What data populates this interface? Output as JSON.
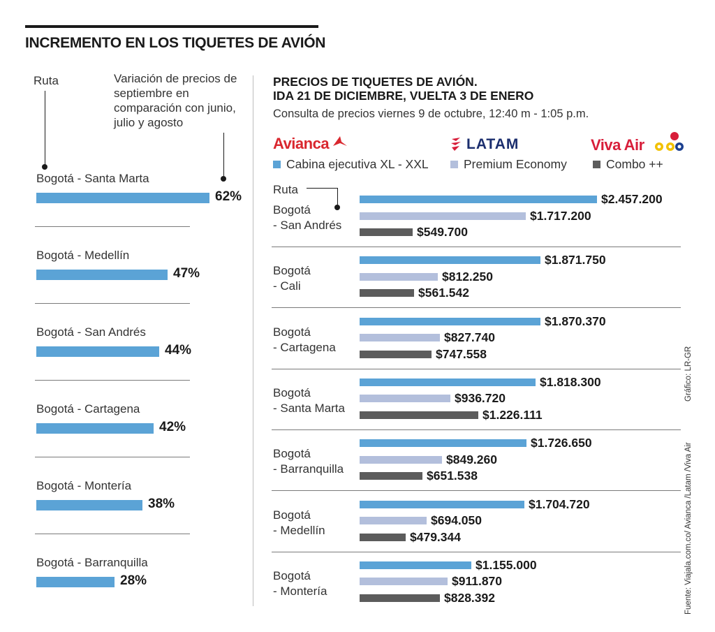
{
  "title": "INCREMENTO EN LOS TIQUETES DE AVIÓN",
  "left": {
    "ruta_label": "Ruta",
    "variation_label": "Variación de precios de septiembre en comparación con junio, julio y agosto"
  },
  "right": {
    "title_line1": "PRECIOS DE TIQUETES DE AVIÓN.",
    "title_line2": "IDA 21 DE DICIEMBRE, VUELTA 3 DE ENERO",
    "subtitle": "Consulta de precios viernes 9 de octubre, 12:40 m - 1:05 p.m.",
    "ruta_label": "Ruta",
    "airlines": {
      "avianca": "Avianca",
      "latam": "LATAM",
      "viva": "Viva Air"
    }
  },
  "credits": {
    "grafico": "Gráfico: LR-GR",
    "fuente": "Fuente: Viajala.com.co/ Avianca /Latam /Viva Air"
  },
  "colors": {
    "blue": "#5ba3d6",
    "light": "#b3bfdc",
    "dark": "#5c5c5c",
    "avianca": "#d9272e",
    "latam": "#1b2e6e",
    "viva": "#d81e3a"
  },
  "chart_data": [
    {
      "type": "bar",
      "orientation": "horizontal",
      "categories": [
        "Bogotá - Santa Marta",
        "Bogotá - Medellín",
        "Bogotá -  San Andrés",
        "Bogotá - Cartagena",
        "Bogotá - Montería",
        "Bogotá - Barranquilla"
      ],
      "values": [
        62,
        47,
        44,
        42,
        38,
        28
      ],
      "value_labels": [
        "62%",
        "47%",
        "44%",
        "42%",
        "38%",
        "28%"
      ],
      "unit": "%"
    },
    {
      "type": "bar",
      "orientation": "horizontal",
      "grouped": true,
      "categories": [
        "Bogotá\n- San Andrés",
        "Bogotá\n- Cali",
        "Bogotá\n- Cartagena",
        "Bogotá\n- Santa Marta",
        "Bogotá\n- Barranquilla",
        "Bogotá\n- Medellín",
        "Bogotá\n- Montería"
      ],
      "series": [
        {
          "name": "Cabina ejecutiva XL - XXL",
          "color": "#5ba3d6",
          "values": [
            2457200,
            1871750,
            1870370,
            1818300,
            1726650,
            1704720,
            1155000
          ],
          "labels": [
            "$2.457.200",
            "$1.871.750",
            "$1.870.370",
            "$1.818.300",
            "$1.726.650",
            "$1.704.720",
            "$1.155.000"
          ]
        },
        {
          "name": "Premium Economy",
          "color": "#b3bfdc",
          "values": [
            1717200,
            812250,
            827740,
            936720,
            849260,
            694050,
            911870
          ],
          "labels": [
            "$1.717.200",
            "$812.250",
            "$827.740",
            "$936.720",
            "$849.260",
            "$694.050",
            "$911.870"
          ]
        },
        {
          "name": "Combo ++",
          "color": "#5c5c5c",
          "values": [
            549700,
            561542,
            747558,
            1226111,
            651538,
            479344,
            828392
          ],
          "labels": [
            "$549.700",
            "$561.542",
            "$747.558",
            "$1.226.111",
            "$651.538",
            "$479.344",
            "$828.392"
          ]
        }
      ]
    }
  ]
}
